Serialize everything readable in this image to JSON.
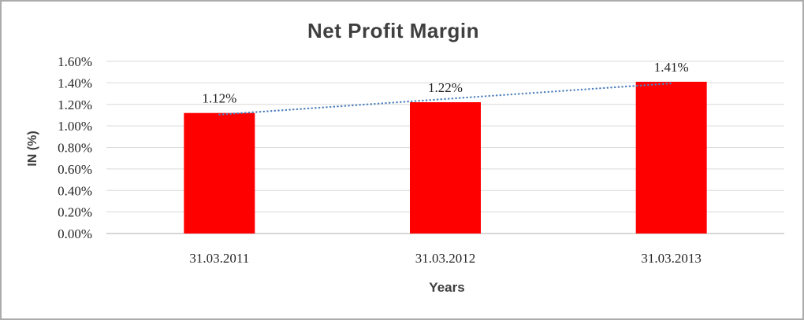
{
  "chart_data": {
    "type": "bar",
    "title": "Net Profit Margin",
    "xlabel": "Years",
    "ylabel": "IN (%)",
    "categories": [
      "31.03.2011",
      "31.03.2012",
      "31.03.2013"
    ],
    "values": [
      1.12,
      1.22,
      1.41
    ],
    "value_labels": [
      "1.12%",
      "1.22%",
      "1.41%"
    ],
    "unit": "percent",
    "ylim": [
      0,
      1.6
    ],
    "yticks": [
      {
        "value": 0.0,
        "label": "0.00%"
      },
      {
        "value": 0.2,
        "label": "0.20%"
      },
      {
        "value": 0.4,
        "label": "0.40%"
      },
      {
        "value": 0.6,
        "label": "0.60%"
      },
      {
        "value": 0.8,
        "label": "0.80%"
      },
      {
        "value": 1.0,
        "label": "1.00%"
      },
      {
        "value": 1.2,
        "label": "1.20%"
      },
      {
        "value": 1.4,
        "label": "1.40%"
      },
      {
        "value": 1.6,
        "label": "1.60%"
      }
    ],
    "grid": true,
    "legend": "none",
    "bar_color": "#FF0000",
    "trendline": {
      "present": true,
      "fit": "linear",
      "style": "dotted",
      "color": "#4E81BD"
    },
    "colors": {
      "title_text": "#3F3F3F",
      "axis_title_text": "#3F3F3F",
      "tick_text": "#262626",
      "data_label_text": "#1F1F1F",
      "gridline": "#D9D9D9",
      "axis_line": "#BFBFBF",
      "frame_border": "#ACACAC",
      "background": "#FFFFFF"
    }
  }
}
